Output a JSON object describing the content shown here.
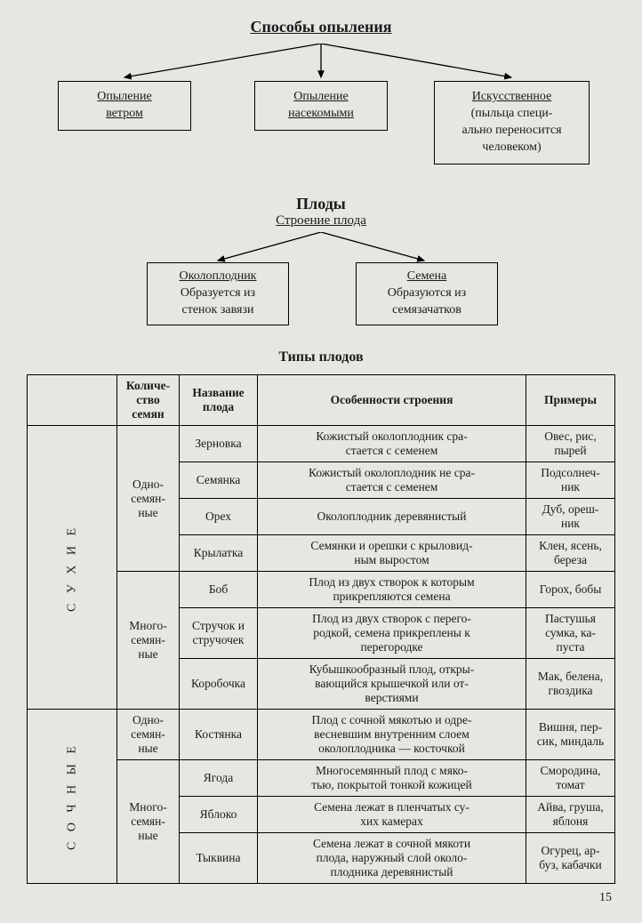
{
  "diagram1": {
    "title": "Способы опыления",
    "box1": {
      "line1": "Опыление",
      "line2": "ветром"
    },
    "box2": {
      "line1": "Опыление",
      "line2": "насекомыми"
    },
    "box3": {
      "line1": "Искусственное",
      "line2": "(пыльца специ-\nально переносится\nчеловеком)"
    },
    "arrow_color": "#000000"
  },
  "fruits_heading": "Плоды",
  "diagram2": {
    "title": "Строение плода",
    "box1": {
      "line1": "Околоплодник",
      "line2": "Образуется из\nстенок завязи"
    },
    "box2": {
      "line1": "Семена",
      "line2": "Образуются из\nсемязачатков"
    }
  },
  "table": {
    "title": "Типы плодов",
    "headers": {
      "c0": "",
      "c1": "Количе-\nство\nсемян",
      "c2": "Название\nплода",
      "c3": "Особенности строения",
      "c4": "Примеры"
    },
    "groups": [
      {
        "label": "С У Х И Е",
        "rowspan": 7
      },
      {
        "label": "С О Ч Н Ы Е",
        "rowspan": 4
      }
    ],
    "seed_groups": [
      {
        "label": "Одно-\nсемян-\nные",
        "rowspan": 4
      },
      {
        "label": "Много-\nсемян-\nные",
        "rowspan": 3
      },
      {
        "label": "Одно-\nсемян-\nные",
        "rowspan": 1
      },
      {
        "label": "Много-\nсемян-\nные",
        "rowspan": 3
      }
    ],
    "rows": [
      {
        "name": "Зерновка",
        "desc": "Кожистый околоплодник сра-\nстается с семенем",
        "ex": "Овес, рис,\nпырей"
      },
      {
        "name": "Семянка",
        "desc": "Кожистый околоплодник не сра-\nстается с семенем",
        "ex": "Подсолнеч-\nник"
      },
      {
        "name": "Орех",
        "desc": "Околоплодник деревянистый",
        "ex": "Дуб, ореш-\nник"
      },
      {
        "name": "Крылатка",
        "desc": "Семянки и орешки с крыловид-\nным выростом",
        "ex": "Клен, ясень,\nбереза"
      },
      {
        "name": "Боб",
        "desc": "Плод из двух створок к которым\nприкрепляются семена",
        "ex": "Горох, бобы"
      },
      {
        "name": "Стручок и\nстручочек",
        "desc": "Плод из двух створок с перего-\nродкой, семена прикреплены к\nперегородке",
        "ex": "Пастушья\nсумка, ка-\nпуста"
      },
      {
        "name": "Коробочка",
        "desc": "Кубышкообразный плод, откры-\nвающийся крышечкой или от-\nверстиями",
        "ex": "Мак, белена,\nгвоздика"
      },
      {
        "name": "Костянка",
        "desc": "Плод с сочной мякотью и одре-\nвесневшим внутренним слоем\nоколоплодника — косточкой",
        "ex": "Вишня, пер-\nсик, миндаль"
      },
      {
        "name": "Ягода",
        "desc": "Многосемянный плод с мяко-\nтью, покрытой тонкой кожицей",
        "ex": "Смородина,\nтомат"
      },
      {
        "name": "Яблоко",
        "desc": "Семена лежат в пленчатых су-\nхих камерах",
        "ex": "Айва, груша,\nяблоня"
      },
      {
        "name": "Тыквина",
        "desc": "Семена лежат в сочной мякоти\nплода, наружный слой около-\nплодника деревянистый",
        "ex": "Огурец, ар-\nбуз, кабачки"
      }
    ]
  },
  "page_number": "15",
  "colors": {
    "background": "#e8e6e2",
    "text": "#1a1a1a",
    "border": "#000000"
  }
}
